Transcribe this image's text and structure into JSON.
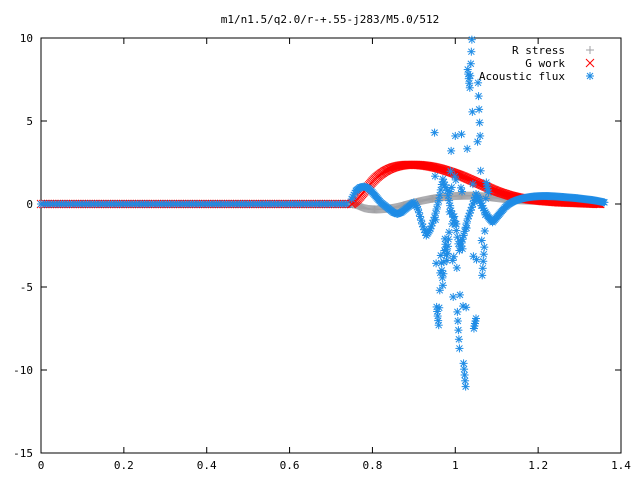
{
  "chart_data": {
    "type": "scatter",
    "title": "m1/n1.5/q2.0/r-+.55-j283/M5.0/512",
    "xlabel": "",
    "ylabel": "",
    "xlim": [
      0,
      1.4
    ],
    "ylim": [
      -15,
      10
    ],
    "xticks": [
      "0",
      "0.2",
      "0.4",
      "0.6",
      "0.8",
      "1",
      "1.2",
      "1.4"
    ],
    "yticks": [
      "10",
      "5",
      "0",
      "-5",
      "-10",
      "-15"
    ],
    "grid": false,
    "legend_position": "top-right",
    "series": [
      {
        "name": "R stress",
        "marker": "plus",
        "color": "#a0a0a4",
        "x": [
          0.75,
          0.76,
          0.77,
          0.78,
          0.79,
          0.8,
          0.81,
          0.82,
          0.83,
          0.84,
          0.85,
          0.86,
          0.87,
          0.88,
          0.89,
          0.9,
          0.91,
          0.92,
          0.93,
          0.94,
          0.95,
          0.96,
          0.97,
          0.98,
          0.99,
          1.0,
          1.01,
          1.02,
          1.03,
          1.04,
          1.05,
          1.06,
          1.07,
          1.08,
          1.09,
          1.1,
          1.11,
          1.12,
          1.13,
          1.14,
          1.15,
          1.16,
          1.17,
          1.18,
          1.19,
          1.2,
          1.21,
          1.22,
          1.23,
          1.24,
          1.25,
          1.26,
          1.27,
          1.28,
          1.29,
          1.3,
          1.31,
          1.32,
          1.33,
          1.34,
          1.35
        ],
        "y": [
          0.0,
          -0.05,
          -0.15,
          -0.25,
          -0.3,
          -0.32,
          -0.33,
          -0.32,
          -0.3,
          -0.27,
          -0.23,
          -0.18,
          -0.12,
          -0.05,
          0.02,
          0.08,
          0.14,
          0.2,
          0.25,
          0.3,
          0.34,
          0.38,
          0.41,
          0.44,
          0.46,
          0.48,
          0.49,
          0.5,
          0.5,
          0.5,
          0.49,
          0.47,
          0.45,
          0.42,
          0.39,
          0.36,
          0.33,
          0.3,
          0.27,
          0.25,
          0.23,
          0.22,
          0.21,
          0.2,
          0.2,
          0.2,
          0.19,
          0.19,
          0.19,
          0.19,
          0.19,
          0.19,
          0.19,
          0.19,
          0.19,
          0.19,
          0.18,
          0.17,
          0.15,
          0.13,
          0.1
        ]
      },
      {
        "name": "G work",
        "marker": "cross",
        "color": "#ff0000",
        "x": [
          0.75,
          0.76,
          0.77,
          0.78,
          0.79,
          0.8,
          0.81,
          0.82,
          0.83,
          0.84,
          0.85,
          0.86,
          0.87,
          0.88,
          0.89,
          0.9,
          0.91,
          0.92,
          0.93,
          0.94,
          0.95,
          0.96,
          0.97,
          0.98,
          0.99,
          1.0,
          1.01,
          1.02,
          1.03,
          1.04,
          1.05,
          1.06,
          1.07,
          1.08,
          1.09,
          1.1,
          1.11,
          1.12,
          1.13,
          1.14,
          1.15,
          1.16,
          1.17,
          1.18,
          1.19,
          1.2,
          1.21,
          1.22,
          1.23,
          1.24,
          1.25,
          1.26,
          1.27,
          1.28,
          1.29,
          1.3,
          1.31,
          1.32,
          1.33,
          1.34,
          1.35
        ],
        "y": [
          0.0,
          0.2,
          0.45,
          0.75,
          1.05,
          1.35,
          1.6,
          1.8,
          1.97,
          2.1,
          2.2,
          2.27,
          2.32,
          2.35,
          2.36,
          2.36,
          2.35,
          2.33,
          2.3,
          2.26,
          2.21,
          2.15,
          2.08,
          2.0,
          1.92,
          1.83,
          1.74,
          1.64,
          1.53,
          1.42,
          1.31,
          1.2,
          1.09,
          0.98,
          0.87,
          0.77,
          0.68,
          0.6,
          0.52,
          0.46,
          0.4,
          0.35,
          0.31,
          0.27,
          0.24,
          0.21,
          0.18,
          0.16,
          0.14,
          0.12,
          0.1,
          0.09,
          0.08,
          0.07,
          0.06,
          0.05,
          0.04,
          0.03,
          0.02,
          0.01,
          0.0
        ]
      },
      {
        "name": "Acoustic flux",
        "marker": "star",
        "color": "#1e8ce6",
        "x": [
          0.75,
          0.76,
          0.77,
          0.78,
          0.79,
          0.8,
          0.81,
          0.82,
          0.83,
          0.84,
          0.85,
          0.86,
          0.87,
          0.88,
          0.89,
          0.9,
          0.91,
          0.92,
          0.93,
          0.94,
          0.95,
          0.96,
          0.97,
          0.98,
          0.99,
          1.0,
          1.01,
          1.02,
          1.03,
          1.04,
          1.05,
          1.06,
          1.07,
          1.08,
          1.09,
          1.1,
          1.11,
          1.12,
          1.13,
          1.14,
          1.15,
          1.16,
          1.17,
          1.18,
          1.19,
          1.2,
          1.21,
          1.22,
          1.23,
          1.24,
          1.25,
          1.26,
          1.27,
          1.28,
          1.29,
          1.3,
          1.31,
          1.32,
          1.33,
          1.34,
          1.35,
          1.36,
          0.95,
          0.955,
          0.96,
          0.965,
          0.97,
          0.975,
          0.98,
          0.985,
          0.99,
          0.995,
          1.0,
          1.005,
          1.01,
          1.015,
          1.02,
          1.025,
          1.03,
          1.035,
          1.04,
          1.045,
          1.05,
          1.055,
          1.06,
          1.065,
          1.07,
          1.075,
          1.08
        ],
        "y": [
          0.3,
          0.8,
          1.0,
          1.05,
          0.95,
          0.7,
          0.4,
          0.1,
          -0.1,
          -0.3,
          -0.5,
          -0.6,
          -0.5,
          -0.3,
          -0.1,
          0.1,
          -0.3,
          -1.2,
          -1.9,
          -1.5,
          -0.8,
          0.2,
          1.5,
          0.8,
          -0.4,
          -1.2,
          -2.8,
          -1.9,
          -0.9,
          -0.2,
          0.6,
          0.2,
          -0.4,
          -0.8,
          -1.1,
          -0.8,
          -0.5,
          -0.2,
          0.0,
          0.15,
          0.25,
          0.32,
          0.38,
          0.42,
          0.45,
          0.47,
          0.48,
          0.48,
          0.47,
          0.46,
          0.44,
          0.42,
          0.4,
          0.38,
          0.36,
          0.33,
          0.3,
          0.27,
          0.24,
          0.2,
          0.15,
          0.1,
          4.3,
          -6.2,
          -7.3,
          -3.1,
          -4.9,
          -2.1,
          -3.4,
          -1.7,
          3.2,
          -5.6,
          4.1,
          -6.5,
          -8.7,
          4.2,
          -9.6,
          -11.0,
          8.1,
          7.0,
          9.9,
          -7.5,
          -6.9,
          7.3,
          4.1,
          -4.3,
          -2.6,
          1.3,
          0.7
        ]
      }
    ]
  }
}
